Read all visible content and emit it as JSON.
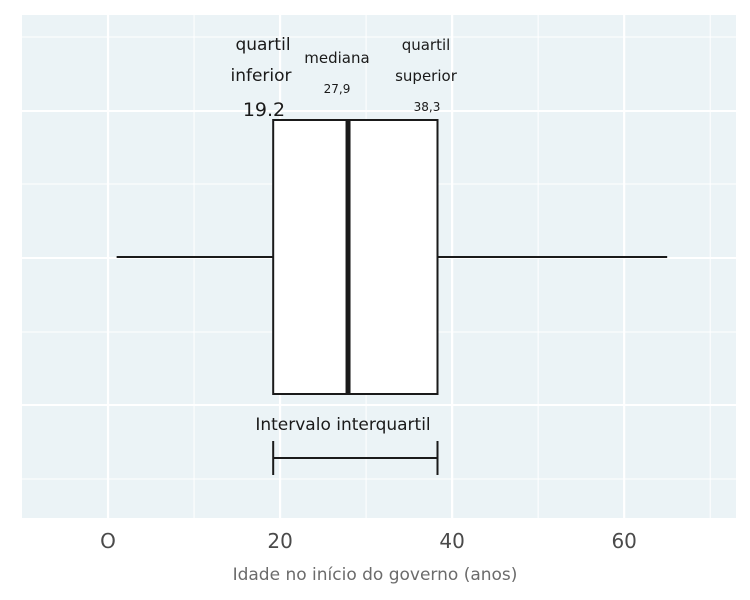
{
  "chart_data": {
    "type": "boxplot",
    "xlabel": "Idade no início do governo (anos)",
    "xlim": [
      -10,
      73
    ],
    "ticks": [
      {
        "value": 0,
        "label": "O"
      },
      {
        "value": 20,
        "label": "20"
      },
      {
        "value": 40,
        "label": "40"
      },
      {
        "value": 60,
        "label": "60"
      }
    ],
    "grid": true,
    "box": {
      "whisker_low": 1,
      "q1": 19.2,
      "median": 27.9,
      "q3": 38.3,
      "whisker_high": 65
    },
    "annotations": {
      "lower_quartile_line1": "quartil",
      "lower_quartile_line2": "inferior",
      "lower_quartile_value": "19.2",
      "median_label": "mediana",
      "median_value": "27,9",
      "upper_quartile_line1": "quartil",
      "upper_quartile_line2": "superior",
      "upper_quartile_value": "38,3",
      "iqr_label": "Intervalo interquartil"
    },
    "colors": {
      "panel_background": "#ebf3f6",
      "grid": "#ffffff",
      "box_fill": "#ffffff",
      "stroke": "#1a1a1a",
      "tick_text": "#4a4a4a",
      "axis_title": "#6b6b6b"
    }
  }
}
